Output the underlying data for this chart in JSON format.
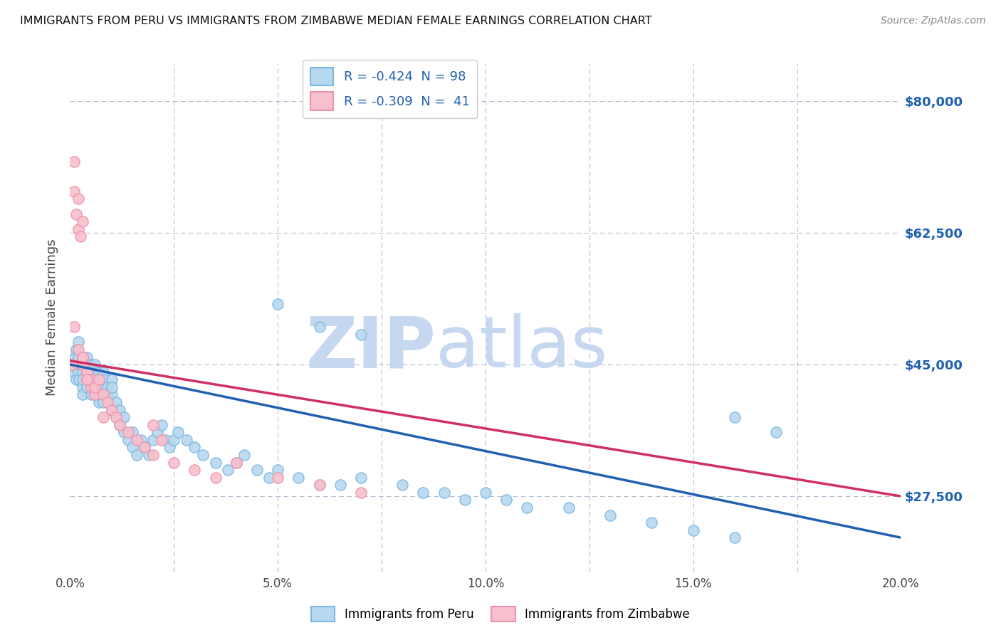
{
  "title": "IMMIGRANTS FROM PERU VS IMMIGRANTS FROM ZIMBABWE MEDIAN FEMALE EARNINGS CORRELATION CHART",
  "source": "Source: ZipAtlas.com",
  "ylabel": "Median Female Earnings",
  "xmin": 0.0,
  "xmax": 0.2,
  "ymin": 17500,
  "ymax": 85000,
  "yticks": [
    27500,
    45000,
    62500,
    80000
  ],
  "ytick_labels": [
    "$27,500",
    "$45,000",
    "$62,500",
    "$80,000"
  ],
  "xticks": [
    0.0,
    0.025,
    0.05,
    0.075,
    0.1,
    0.125,
    0.15,
    0.175,
    0.2
  ],
  "xtick_labels": [
    "0.0%",
    "",
    "5.0%",
    "",
    "10.0%",
    "",
    "15.0%",
    "",
    "20.0%"
  ],
  "peru_color": "#7ab8e0",
  "peru_face": "#b8d8f0",
  "zimbabwe_color": "#f090aa",
  "zimbabwe_face": "#f8c0cc",
  "trendline_peru_color": "#2060b0",
  "trendline_zim_color": "#d03060",
  "peru_R": -0.424,
  "peru_N": 98,
  "zim_R": -0.309,
  "zim_N": 41,
  "legend_label_peru": "R = -0.424  N = 98",
  "legend_label_zim": "R = -0.309  N =  41",
  "watermark_zip": "ZIP",
  "watermark_atlas": "atlas",
  "watermark_color": "#c5d8f0",
  "background_color": "#ffffff",
  "grid_color": "#b0bcd0",
  "peru_x": [
    0.0005,
    0.001,
    0.0012,
    0.0015,
    0.0015,
    0.002,
    0.002,
    0.002,
    0.0022,
    0.0025,
    0.003,
    0.003,
    0.003,
    0.003,
    0.003,
    0.0035,
    0.004,
    0.004,
    0.004,
    0.004,
    0.004,
    0.0045,
    0.005,
    0.005,
    0.005,
    0.005,
    0.0055,
    0.006,
    0.006,
    0.006,
    0.006,
    0.007,
    0.007,
    0.007,
    0.007,
    0.007,
    0.008,
    0.008,
    0.008,
    0.008,
    0.009,
    0.009,
    0.009,
    0.01,
    0.01,
    0.01,
    0.01,
    0.011,
    0.011,
    0.012,
    0.012,
    0.013,
    0.013,
    0.014,
    0.015,
    0.015,
    0.016,
    0.017,
    0.018,
    0.019,
    0.02,
    0.021,
    0.022,
    0.023,
    0.024,
    0.025,
    0.026,
    0.028,
    0.03,
    0.032,
    0.035,
    0.038,
    0.04,
    0.042,
    0.045,
    0.048,
    0.05,
    0.055,
    0.06,
    0.065,
    0.07,
    0.08,
    0.085,
    0.09,
    0.095,
    0.1,
    0.105,
    0.11,
    0.12,
    0.13,
    0.14,
    0.15,
    0.16,
    0.05,
    0.06,
    0.07,
    0.16,
    0.17
  ],
  "peru_y": [
    45000,
    44000,
    46000,
    43000,
    47000,
    44000,
    46000,
    48000,
    43000,
    45000,
    42000,
    44000,
    46000,
    43000,
    41000,
    45000,
    43000,
    45000,
    46000,
    44000,
    42000,
    44000,
    41000,
    43000,
    45000,
    44000,
    42000,
    41000,
    43000,
    45000,
    44000,
    40000,
    42000,
    44000,
    43000,
    41000,
    40000,
    42000,
    44000,
    43000,
    40000,
    42000,
    41000,
    39000,
    41000,
    43000,
    42000,
    38000,
    40000,
    37000,
    39000,
    36000,
    38000,
    35000,
    34000,
    36000,
    33000,
    35000,
    34000,
    33000,
    35000,
    36000,
    37000,
    35000,
    34000,
    35000,
    36000,
    35000,
    34000,
    33000,
    32000,
    31000,
    32000,
    33000,
    31000,
    30000,
    31000,
    30000,
    29000,
    29000,
    30000,
    29000,
    28000,
    28000,
    27000,
    28000,
    27000,
    26000,
    26000,
    25000,
    24000,
    23000,
    22000,
    53000,
    50000,
    49000,
    38000,
    36000
  ],
  "zim_x": [
    0.0005,
    0.001,
    0.001,
    0.0015,
    0.002,
    0.002,
    0.0025,
    0.003,
    0.003,
    0.003,
    0.004,
    0.004,
    0.004,
    0.005,
    0.005,
    0.006,
    0.006,
    0.007,
    0.008,
    0.009,
    0.01,
    0.011,
    0.012,
    0.014,
    0.016,
    0.018,
    0.02,
    0.022,
    0.025,
    0.03,
    0.035,
    0.04,
    0.05,
    0.06,
    0.07,
    0.001,
    0.002,
    0.003,
    0.004,
    0.008,
    0.02
  ],
  "zim_y": [
    45000,
    68000,
    72000,
    65000,
    63000,
    67000,
    62000,
    64000,
    45000,
    46000,
    44000,
    43000,
    44000,
    42000,
    43000,
    41000,
    42000,
    43000,
    41000,
    40000,
    39000,
    38000,
    37000,
    36000,
    35000,
    34000,
    33000,
    35000,
    32000,
    31000,
    30000,
    32000,
    30000,
    29000,
    28000,
    50000,
    47000,
    46000,
    43000,
    38000,
    37000
  ],
  "zim_trend_xmin": 0.0,
  "zim_trend_xmax": 0.2,
  "peru_trend_xmin": 0.0,
  "peru_trend_xmax": 0.2,
  "peru_trend_y0": 45000,
  "peru_trend_y1": 22000,
  "zim_trend_y0": 45500,
  "zim_trend_y1": 27500
}
